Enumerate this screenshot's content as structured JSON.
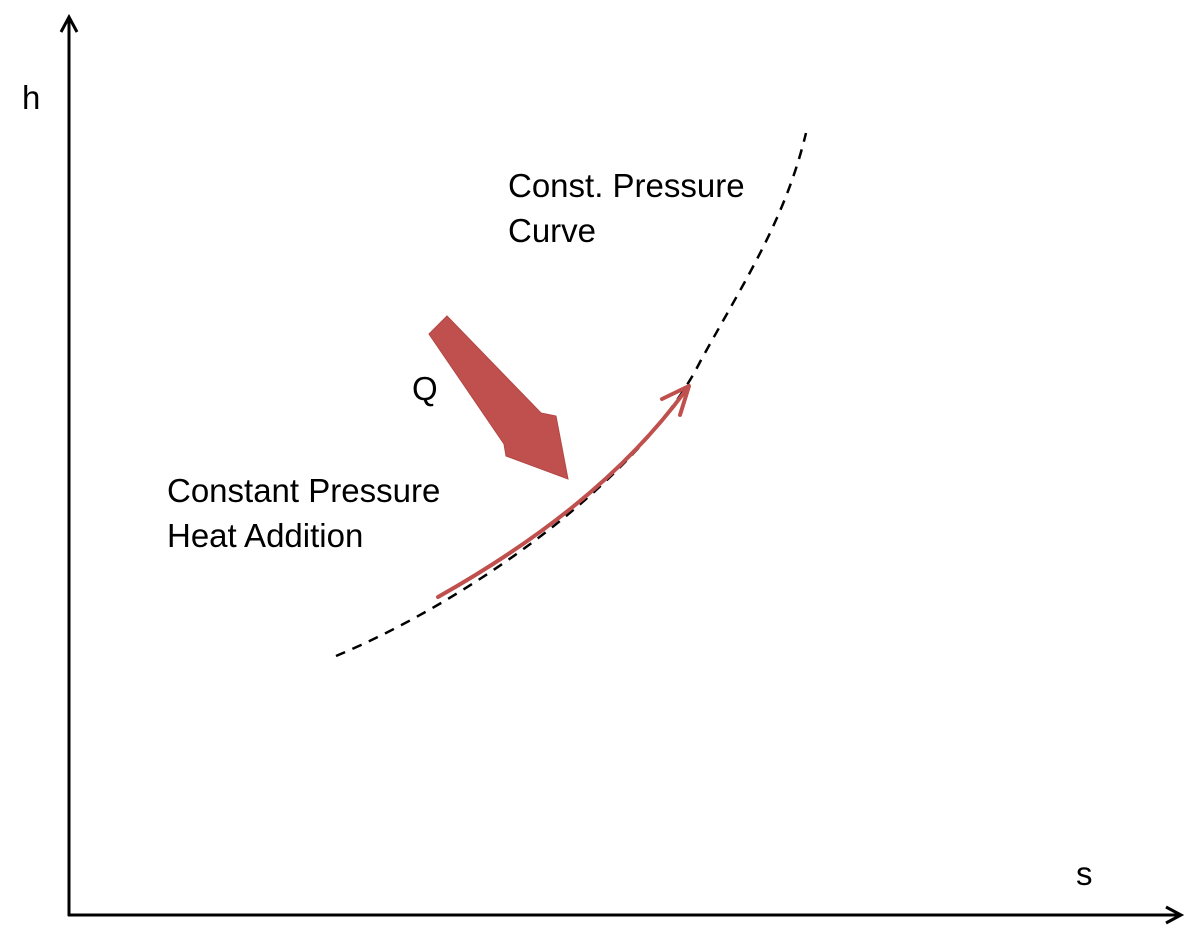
{
  "axes": {
    "y_label": "h",
    "x_label": "s"
  },
  "labels": {
    "curve_line1": "Const. Pressure",
    "curve_line2": "Curve",
    "heat": "Q",
    "process_line1": "Constant Pressure",
    "process_line2": "Heat Addition"
  },
  "colors": {
    "axis": "#000000",
    "curve": "#000000",
    "process": "#c0504d",
    "heat_arrow": "#c0504d"
  }
}
